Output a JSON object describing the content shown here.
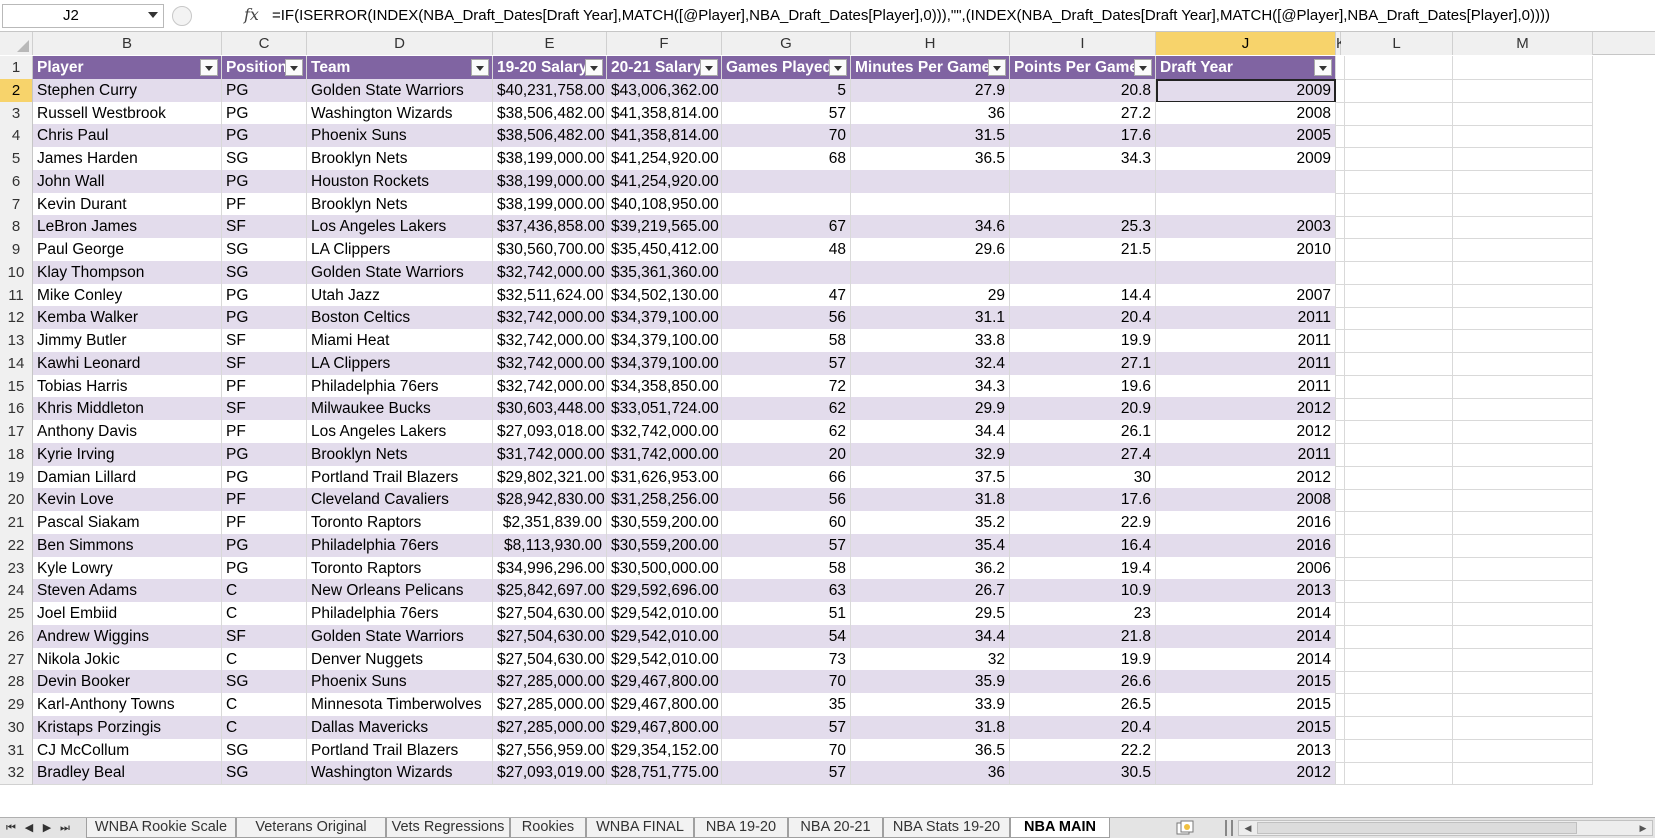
{
  "formula_bar": {
    "name_box": "J2",
    "fx_label": "fx",
    "formula": "=IF(ISERROR(INDEX(NBA_Draft_Dates[Draft Year],MATCH([@Player],NBA_Draft_Dates[Player],0))),\"\",(INDEX(NBA_Draft_Dates[Draft Year],MATCH([@Player],NBA_Draft_Dates[Player],0))))"
  },
  "columns": [
    "B",
    "C",
    "D",
    "E",
    "F",
    "G",
    "H",
    "I",
    "J",
    "K",
    "L",
    "M"
  ],
  "active_column": "J",
  "active_row": "2",
  "table": {
    "headers": [
      "Player",
      "Position",
      "Team",
      "19-20 Salary",
      "20-21 Salary",
      "Games Played",
      "Minutes Per Game",
      "Points Per Game",
      "Draft Year"
    ],
    "rows": [
      [
        "2",
        "Stephen Curry",
        "PG",
        "Golden State Warriors",
        "$40,231,758.00",
        "$43,006,362.00",
        "5",
        "27.9",
        "20.8",
        "2009"
      ],
      [
        "3",
        "Russell Westbrook",
        "PG",
        "Washington Wizards",
        "$38,506,482.00",
        "$41,358,814.00",
        "57",
        "36",
        "27.2",
        "2008"
      ],
      [
        "4",
        "Chris Paul",
        "PG",
        "Phoenix Suns",
        "$38,506,482.00",
        "$41,358,814.00",
        "70",
        "31.5",
        "17.6",
        "2005"
      ],
      [
        "5",
        "James Harden",
        "SG",
        "Brooklyn Nets",
        "$38,199,000.00",
        "$41,254,920.00",
        "68",
        "36.5",
        "34.3",
        "2009"
      ],
      [
        "6",
        "John Wall",
        "PG",
        "Houston Rockets",
        "$38,199,000.00",
        "$41,254,920.00",
        "",
        "",
        "",
        ""
      ],
      [
        "7",
        "Kevin Durant",
        "PF",
        "Brooklyn Nets",
        "$38,199,000.00",
        "$40,108,950.00",
        "",
        "",
        "",
        ""
      ],
      [
        "8",
        "LeBron James",
        "SF",
        "Los Angeles Lakers",
        "$37,436,858.00",
        "$39,219,565.00",
        "67",
        "34.6",
        "25.3",
        "2003"
      ],
      [
        "9",
        "Paul George",
        "SG",
        "LA Clippers",
        "$30,560,700.00",
        "$35,450,412.00",
        "48",
        "29.6",
        "21.5",
        "2010"
      ],
      [
        "10",
        "Klay Thompson",
        "SG",
        "Golden State Warriors",
        "$32,742,000.00",
        "$35,361,360.00",
        "",
        "",
        "",
        ""
      ],
      [
        "11",
        "Mike Conley",
        "PG",
        "Utah Jazz",
        "$32,511,624.00",
        "$34,502,130.00",
        "47",
        "29",
        "14.4",
        "2007"
      ],
      [
        "12",
        "Kemba Walker",
        "PG",
        "Boston Celtics",
        "$32,742,000.00",
        "$34,379,100.00",
        "56",
        "31.1",
        "20.4",
        "2011"
      ],
      [
        "13",
        "Jimmy Butler",
        "SF",
        "Miami Heat",
        "$32,742,000.00",
        "$34,379,100.00",
        "58",
        "33.8",
        "19.9",
        "2011"
      ],
      [
        "14",
        "Kawhi Leonard",
        "SF",
        "LA Clippers",
        "$32,742,000.00",
        "$34,379,100.00",
        "57",
        "32.4",
        "27.1",
        "2011"
      ],
      [
        "15",
        "Tobias Harris",
        "PF",
        "Philadelphia 76ers",
        "$32,742,000.00",
        "$34,358,850.00",
        "72",
        "34.3",
        "19.6",
        "2011"
      ],
      [
        "16",
        "Khris Middleton",
        "SF",
        "Milwaukee Bucks",
        "$30,603,448.00",
        "$33,051,724.00",
        "62",
        "29.9",
        "20.9",
        "2012"
      ],
      [
        "17",
        "Anthony Davis",
        "PF",
        "Los Angeles Lakers",
        "$27,093,018.00",
        "$32,742,000.00",
        "62",
        "34.4",
        "26.1",
        "2012"
      ],
      [
        "18",
        "Kyrie Irving",
        "PG",
        "Brooklyn Nets",
        "$31,742,000.00",
        "$31,742,000.00",
        "20",
        "32.9",
        "27.4",
        "2011"
      ],
      [
        "19",
        "Damian Lillard",
        "PG",
        "Portland Trail Blazers",
        "$29,802,321.00",
        "$31,626,953.00",
        "66",
        "37.5",
        "30",
        "2012"
      ],
      [
        "20",
        "Kevin Love",
        "PF",
        "Cleveland Cavaliers",
        "$28,942,830.00",
        "$31,258,256.00",
        "56",
        "31.8",
        "17.6",
        "2008"
      ],
      [
        "21",
        "Pascal Siakam",
        "PF",
        "Toronto Raptors",
        "$2,351,839.00",
        "$30,559,200.00",
        "60",
        "35.2",
        "22.9",
        "2016"
      ],
      [
        "22",
        "Ben Simmons",
        "PG",
        "Philadelphia 76ers",
        "$8,113,930.00",
        "$30,559,200.00",
        "57",
        "35.4",
        "16.4",
        "2016"
      ],
      [
        "23",
        "Kyle Lowry",
        "PG",
        "Toronto Raptors",
        "$34,996,296.00",
        "$30,500,000.00",
        "58",
        "36.2",
        "19.4",
        "2006"
      ],
      [
        "24",
        "Steven Adams",
        "C",
        "New Orleans Pelicans",
        "$25,842,697.00",
        "$29,592,696.00",
        "63",
        "26.7",
        "10.9",
        "2013"
      ],
      [
        "25",
        "Joel Embiid",
        "C",
        "Philadelphia 76ers",
        "$27,504,630.00",
        "$29,542,010.00",
        "51",
        "29.5",
        "23",
        "2014"
      ],
      [
        "26",
        "Andrew Wiggins",
        "SF",
        "Golden State Warriors",
        "$27,504,630.00",
        "$29,542,010.00",
        "54",
        "34.4",
        "21.8",
        "2014"
      ],
      [
        "27",
        "Nikola Jokic",
        "C",
        "Denver Nuggets",
        "$27,504,630.00",
        "$29,542,010.00",
        "73",
        "32",
        "19.9",
        "2014"
      ],
      [
        "28",
        "Devin Booker",
        "SG",
        "Phoenix Suns",
        "$27,285,000.00",
        "$29,467,800.00",
        "70",
        "35.9",
        "26.6",
        "2015"
      ],
      [
        "29",
        "Karl-Anthony Towns",
        "C",
        "Minnesota Timberwolves",
        "$27,285,000.00",
        "$29,467,800.00",
        "35",
        "33.9",
        "26.5",
        "2015"
      ],
      [
        "30",
        "Kristaps Porzingis",
        "C",
        "Dallas Mavericks",
        "$27,285,000.00",
        "$29,467,800.00",
        "57",
        "31.8",
        "20.4",
        "2015"
      ],
      [
        "31",
        "CJ McCollum",
        "SG",
        "Portland Trail Blazers",
        "$27,556,959.00",
        "$29,354,152.00",
        "70",
        "36.5",
        "22.2",
        "2013"
      ],
      [
        "32",
        "Bradley Beal",
        "SG",
        "Washington Wizards",
        "$27,093,019.00",
        "$28,751,775.00",
        "57",
        "36",
        "30.5",
        "2012"
      ]
    ]
  },
  "header_row_number": "1",
  "sheet_tabs": [
    "WNBA Rookie Scale",
    "Veterans Original",
    "Vets Regressions",
    "Rookies",
    "WNBA FINAL",
    "NBA 19-20",
    "NBA 20-21",
    "NBA Stats 19-20",
    "NBA MAIN"
  ],
  "active_tab": "NBA MAIN",
  "colors": {
    "header_fill": "#8064a2",
    "band_fill": "#e3dcec",
    "active_header": "#f7d36b"
  }
}
